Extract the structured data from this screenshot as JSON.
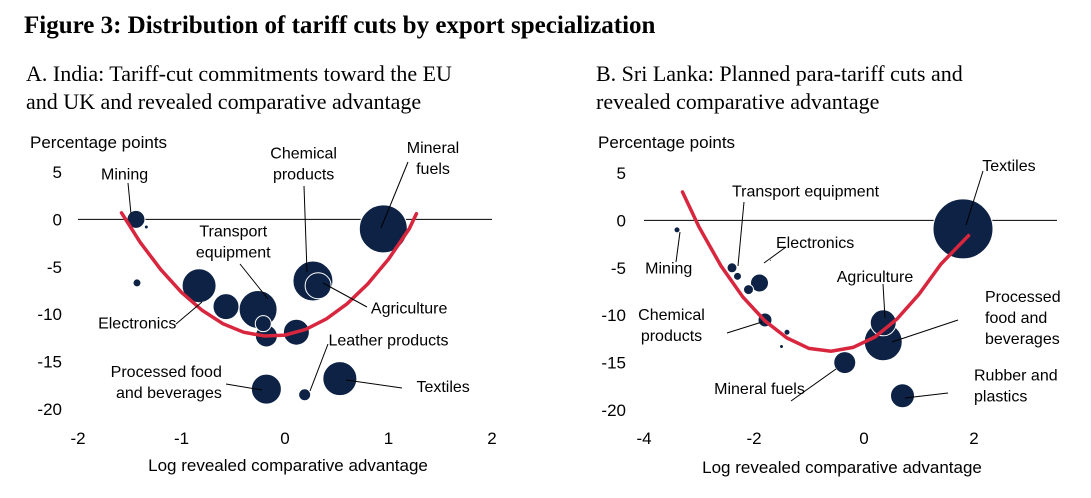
{
  "figure_title": "Figure 3: Distribution of tariff cuts by export specialization",
  "chart_data": [
    {
      "type": "scatter",
      "subtitle_lines": [
        "A. India: Tariff-cut commitments toward the EU",
        "and UK and revealed comparative advantage"
      ],
      "ylabel": "Percentage points",
      "xlabel": "Log revealed comparative advantage",
      "xlim": [
        -2,
        2
      ],
      "ylim": [
        -20,
        5
      ],
      "xticks": [
        "-2",
        "-1",
        "0",
        "1",
        "2"
      ],
      "yticks": [
        "5",
        "0",
        "-5",
        "-10",
        "-15",
        "-20"
      ],
      "points": [
        {
          "x": 0.95,
          "y": -1,
          "r": 24
        },
        {
          "x": 0.27,
          "y": -6.5,
          "r": 20
        },
        {
          "x": 0.32,
          "y": -7.0,
          "r": 13
        },
        {
          "x": -1.44,
          "y": 0.0,
          "r": 9
        },
        {
          "x": -1.34,
          "y": -0.8,
          "r": 2
        },
        {
          "x": -1.43,
          "y": -6.7,
          "r": 4
        },
        {
          "x": -0.83,
          "y": -7.0,
          "r": 17
        },
        {
          "x": -0.57,
          "y": -9.2,
          "r": 13
        },
        {
          "x": -0.26,
          "y": -9.5,
          "r": 19
        },
        {
          "x": -0.21,
          "y": -11.0,
          "r": 8
        },
        {
          "x": -0.18,
          "y": -12.3,
          "r": 11
        },
        {
          "x": 0.11,
          "y": -11.9,
          "r": 13
        },
        {
          "x": -0.18,
          "y": -17.9,
          "r": 15
        },
        {
          "x": 0.53,
          "y": -16.8,
          "r": 17
        },
        {
          "x": 0.19,
          "y": -18.5,
          "r": 6
        }
      ],
      "curve_x": [
        -1.58,
        -1.4,
        -1.2,
        -1.0,
        -0.8,
        -0.6,
        -0.4,
        -0.2,
        0.0,
        0.2,
        0.4,
        0.6,
        0.8,
        1.0,
        1.2,
        1.27
      ],
      "curve_y": [
        0.7,
        -2.4,
        -5.3,
        -7.7,
        -9.6,
        -11.0,
        -11.9,
        -12.3,
        -12.2,
        -11.6,
        -10.5,
        -8.9,
        -6.8,
        -4.2,
        -1.0,
        0.6
      ],
      "annotations": [
        {
          "lines": [
            "Mining"
          ],
          "x": -1.55,
          "y": 4.2,
          "anchor": "middle"
        },
        {
          "lines": [
            "Chemical",
            "products"
          ],
          "x": 0.18,
          "y": 6.4,
          "anchor": "middle"
        },
        {
          "lines": [
            "Mineral",
            "fuels"
          ],
          "x": 1.43,
          "y": 7.0,
          "anchor": "middle"
        },
        {
          "lines": [
            "Transport",
            "equipment"
          ],
          "x": -0.5,
          "y": -1.8,
          "anchor": "middle"
        },
        {
          "lines": [
            "Agriculture"
          ],
          "x": 0.83,
          "y": -9.9,
          "anchor": "start"
        },
        {
          "lines": [
            "Electronics"
          ],
          "x": -1.05,
          "y": -11.5,
          "anchor": "end"
        },
        {
          "lines": [
            "Leather products"
          ],
          "x": 0.42,
          "y": -13.3,
          "anchor": "start"
        },
        {
          "lines": [
            "Processed food",
            "and beverages"
          ],
          "x": -0.61,
          "y": -16.6,
          "anchor": "end"
        },
        {
          "lines": [
            "Textiles"
          ],
          "x": 1.27,
          "y": -18.2,
          "anchor": "start"
        }
      ]
    },
    {
      "type": "scatter",
      "subtitle_lines": [
        "B. Sri Lanka: Planned para-tariff cuts and",
        "revealed comparative advantage"
      ],
      "ylabel": "Percentage points",
      "xlabel": "Log revealed comparative advantage",
      "xlim": [
        -4,
        2
      ],
      "ylim": [
        -20,
        5
      ],
      "xticks": [
        "-4",
        "-2",
        "0",
        "2"
      ],
      "yticks": [
        "5",
        "0",
        "-5",
        "-10",
        "-15",
        "-20"
      ],
      "points": [
        {
          "x": 1.8,
          "y": -0.9,
          "r": 30
        },
        {
          "x": -3.4,
          "y": -1.0,
          "r": 3
        },
        {
          "x": -2.4,
          "y": -5.0,
          "r": 5
        },
        {
          "x": -2.3,
          "y": -5.9,
          "r": 4
        },
        {
          "x": -2.1,
          "y": -7.3,
          "r": 5
        },
        {
          "x": -1.9,
          "y": -6.6,
          "r": 9
        },
        {
          "x": -1.7,
          "y": -4.2,
          "r": 1
        },
        {
          "x": -1.8,
          "y": -10.5,
          "r": 7
        },
        {
          "x": -1.4,
          "y": -11.8,
          "r": 3
        },
        {
          "x": -1.5,
          "y": -13.3,
          "r": 2
        },
        {
          "x": 0.35,
          "y": -10.8,
          "r": 13
        },
        {
          "x": 0.35,
          "y": -12.8,
          "r": 19
        },
        {
          "x": -0.35,
          "y": -15.0,
          "r": 11
        },
        {
          "x": 0.7,
          "y": -18.5,
          "r": 12
        }
      ],
      "curve_x": [
        -3.3,
        -3.0,
        -2.6,
        -2.2,
        -1.8,
        -1.4,
        -1.0,
        -0.6,
        -0.2,
        0.2,
        0.6,
        1.0,
        1.4,
        1.9
      ],
      "curve_y": [
        3.0,
        -0.7,
        -4.8,
        -8.1,
        -10.6,
        -12.4,
        -13.5,
        -13.8,
        -13.4,
        -12.3,
        -10.4,
        -7.8,
        -4.6,
        0.0
      ],
      "y_curve_end": -1.6,
      "annotations": [
        {
          "lines": [
            "Textiles"
          ],
          "x": 2.15,
          "y": 5.2,
          "anchor": "start"
        },
        {
          "lines": [
            "Transport equipment"
          ],
          "x": -2.4,
          "y": 2.5,
          "anchor": "start"
        },
        {
          "lines": [
            "Electronics"
          ],
          "x": -1.6,
          "y": -2.9,
          "anchor": "start"
        },
        {
          "lines": [
            "Mining"
          ],
          "x": -3.55,
          "y": -5.6,
          "anchor": "middle"
        },
        {
          "lines": [
            "Agriculture"
          ],
          "x": 0.2,
          "y": -6.5,
          "anchor": "middle"
        },
        {
          "lines": [
            "Processed",
            "food and",
            "beverages"
          ],
          "x": 2.2,
          "y": -8.6,
          "anchor": "start"
        },
        {
          "lines": [
            "Chemical",
            "products"
          ],
          "x": -3.5,
          "y": -10.5,
          "anchor": "middle"
        },
        {
          "lines": [
            "Mineral fuels"
          ],
          "x": -1.9,
          "y": -18.3,
          "anchor": "middle"
        },
        {
          "lines": [
            "Rubber and",
            "plastics"
          ],
          "x": 2.0,
          "y": -16.9,
          "anchor": "start"
        }
      ]
    }
  ]
}
